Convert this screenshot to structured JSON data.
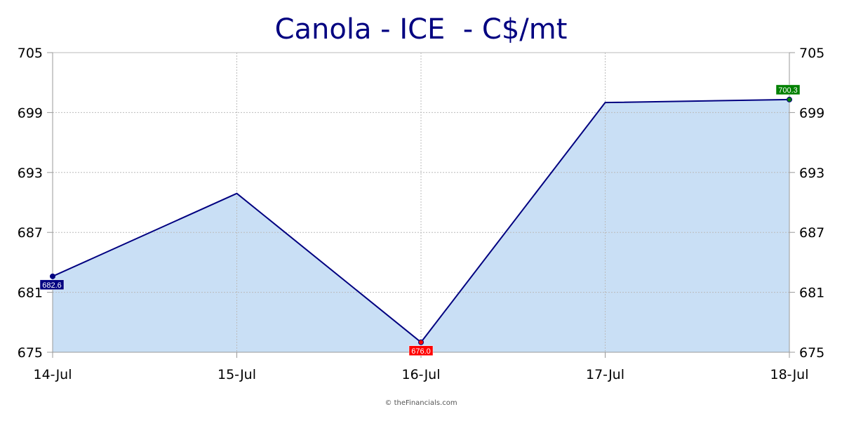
{
  "chart_data": {
    "type": "area",
    "title": "Canola - ICE  - C$/mt",
    "categories": [
      "14-Jul",
      "15-Jul",
      "16-Jul",
      "17-Jul",
      "18-Jul"
    ],
    "series": [
      {
        "values": [
          682.6,
          690.9,
          676.0,
          700.0,
          700.3
        ]
      }
    ],
    "ylim": [
      675,
      705
    ],
    "yticks": [
      "705",
      "699",
      "693",
      "687",
      "681",
      "675"
    ],
    "y_axis_both_sides": true,
    "grid": true,
    "data_labels": [
      {
        "index": 0,
        "text": "682.6",
        "color": "#000080"
      },
      {
        "index": 2,
        "text": "676.0",
        "color": "#ff0000"
      },
      {
        "index": 4,
        "text": "700.3",
        "color": "#008000"
      }
    ],
    "colors": {
      "line": "#000080",
      "fill": "#c9dff5",
      "grid": "#bbbbbb",
      "axis": "#999999"
    }
  },
  "footer": {
    "copyright": "© theFinancials.com"
  }
}
